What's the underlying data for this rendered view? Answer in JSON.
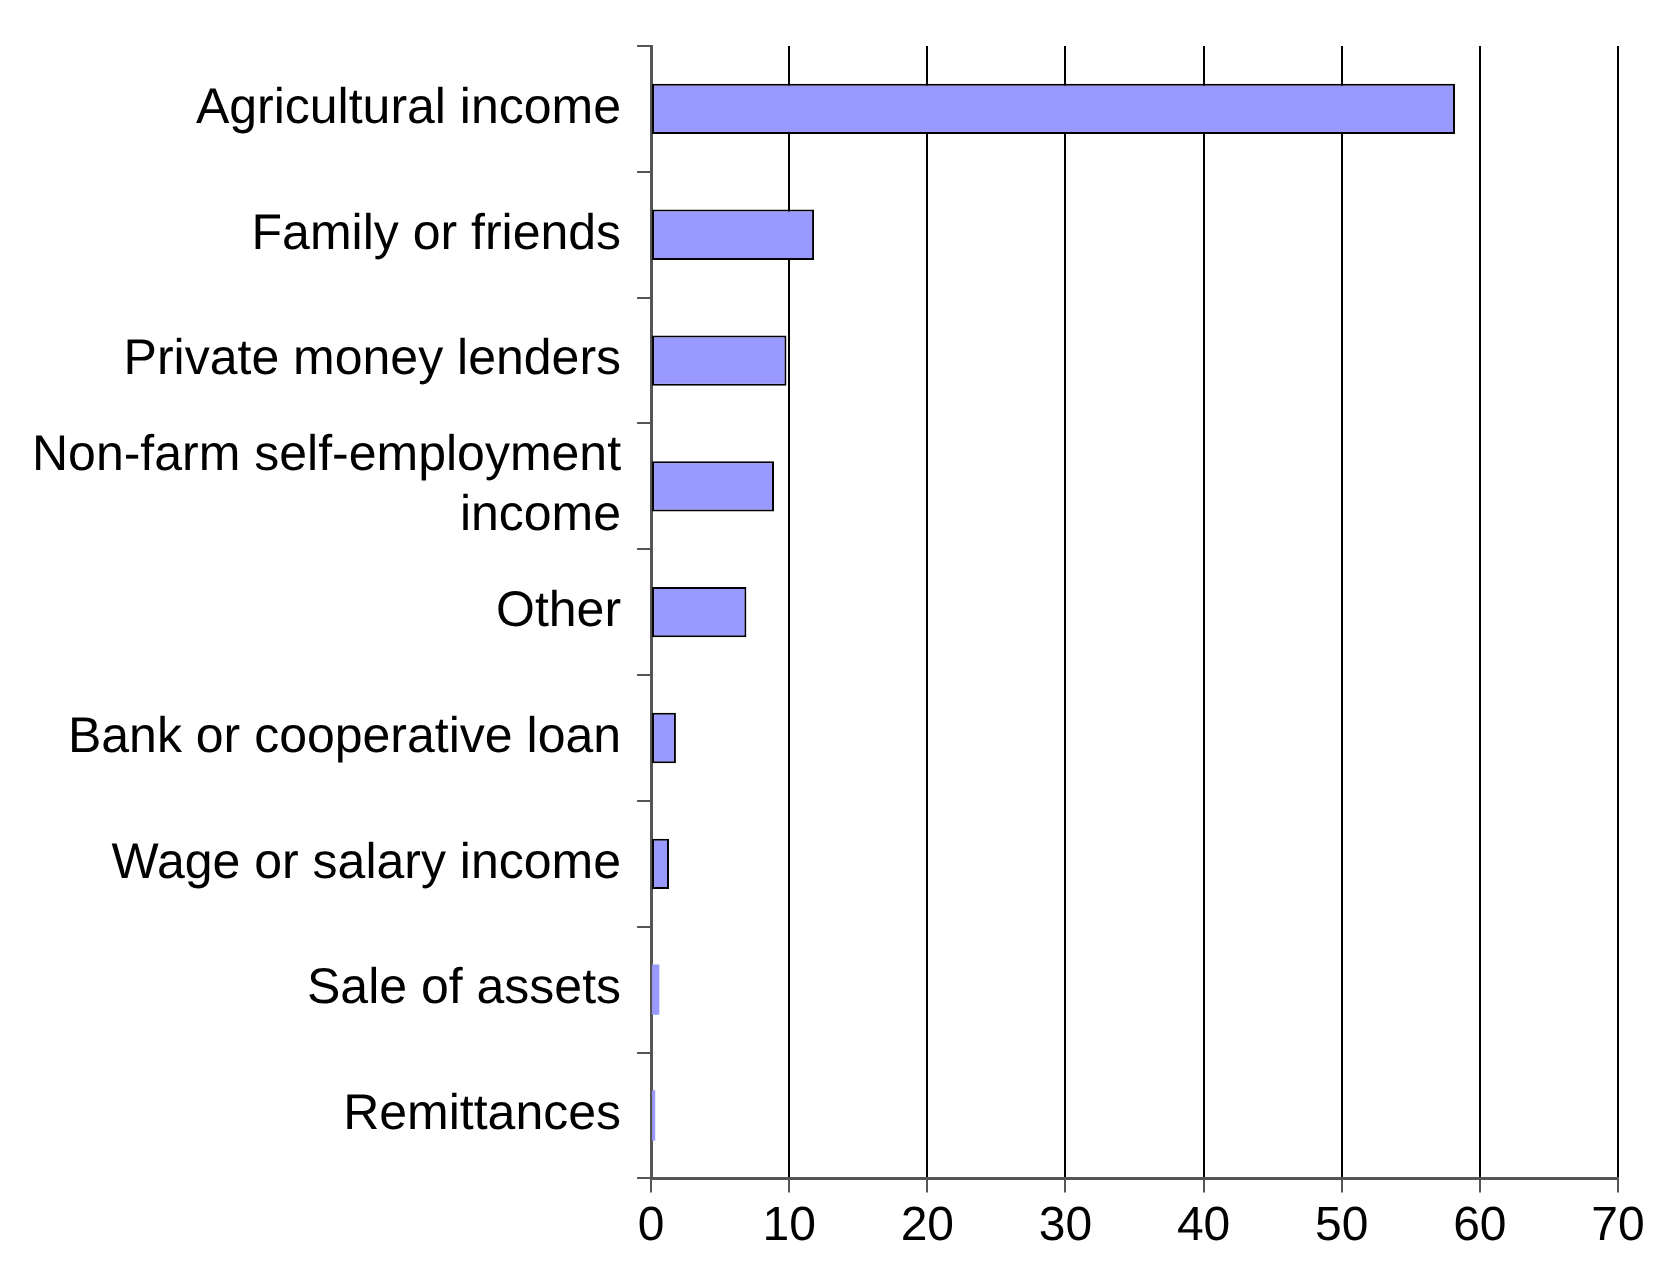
{
  "chart_data": {
    "type": "bar",
    "orientation": "horizontal",
    "categories": [
      "Agricultural income",
      "Family or friends",
      "Private money lenders",
      "Non-farm self-employment income",
      "Other",
      "Bank or cooperative loan",
      "Wage or salary income",
      "Sale of assets",
      "Remittances"
    ],
    "values": [
      58.2,
      11.8,
      9.8,
      8.9,
      6.9,
      1.8,
      1.3,
      0.6,
      0.3
    ],
    "color": "#9999ff",
    "xlim": [
      0,
      70
    ],
    "xticks": [
      0,
      10,
      20,
      30,
      40,
      50,
      60,
      70
    ],
    "grid": "x",
    "legend": false
  }
}
